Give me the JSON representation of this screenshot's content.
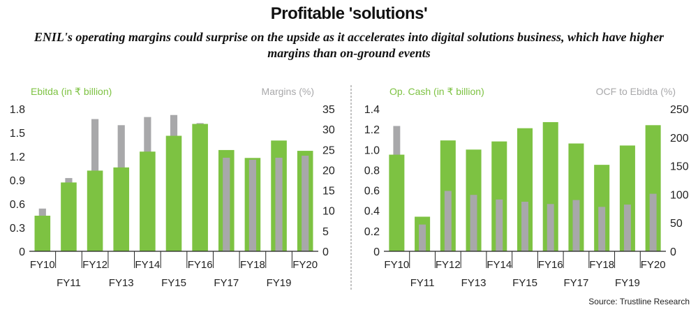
{
  "header": {
    "title": "Profitable 'solutions'",
    "subtitle": "ENIL's operating margins could surprise on the upside as it accelerates into digital solutions business, which have higher margins than on-ground events"
  },
  "source": "Source: Trustline Research",
  "colors": {
    "green": "#7dc242",
    "grey": "#a8a8aa",
    "axis": "#222222",
    "divider": "#999999"
  },
  "chart_data": [
    {
      "type": "bar",
      "categories": [
        "FY10",
        "FY11",
        "FY12",
        "FY13",
        "FY14",
        "FY15",
        "FY16",
        "FY17",
        "FY18",
        "FY19",
        "FY20"
      ],
      "series": [
        {
          "name": "Ebitda (in ₹ billion)",
          "axis": "left",
          "values": [
            0.45,
            0.87,
            1.02,
            1.06,
            1.26,
            1.46,
            1.61,
            1.28,
            1.18,
            1.4,
            1.27
          ]
        },
        {
          "name": "Margins (%)",
          "axis": "right",
          "values": [
            10.5,
            18.0,
            32.5,
            31.0,
            33.0,
            33.5,
            31.5,
            23.0,
            22.5,
            23.0,
            23.5
          ]
        }
      ],
      "left_label": "Ebitda (in ₹ billion)",
      "right_label": "Margins (%)",
      "left_ticks": [
        "0",
        "0.3",
        "0.6",
        "0.9",
        "1.2",
        "1.5",
        "1.8"
      ],
      "right_ticks": [
        "0",
        "5",
        "10",
        "15",
        "20",
        "25",
        "30",
        "35"
      ],
      "ylim_left": [
        0,
        1.8
      ],
      "ylim_right": [
        0,
        35
      ]
    },
    {
      "type": "bar",
      "categories": [
        "FY10",
        "FY11",
        "FY12",
        "FY13",
        "FY14",
        "FY15",
        "FY16",
        "FY17",
        "FY18",
        "FY19",
        "FY20"
      ],
      "series": [
        {
          "name": "Op. Cash (in ₹ billion)",
          "axis": "left",
          "values": [
            0.95,
            0.34,
            1.09,
            1.0,
            1.08,
            1.21,
            1.27,
            1.06,
            0.85,
            1.04,
            1.24
          ]
        },
        {
          "name": "OCF to Ebidta (%)",
          "axis": "right",
          "values": [
            220,
            47,
            106,
            99,
            91,
            87,
            83,
            90,
            78,
            82,
            101
          ]
        }
      ],
      "left_label": "Op. Cash (in ₹ billion)",
      "right_label": "OCF to Ebidta (%)",
      "left_ticks": [
        "0",
        "0.2",
        "0.4",
        "0.6",
        "0.8",
        "1.0",
        "1.2",
        "1.4"
      ],
      "right_ticks": [
        "0",
        "50",
        "100",
        "150",
        "200",
        "250"
      ],
      "ylim_left": [
        0,
        1.4
      ],
      "ylim_right": [
        0,
        250
      ]
    }
  ]
}
